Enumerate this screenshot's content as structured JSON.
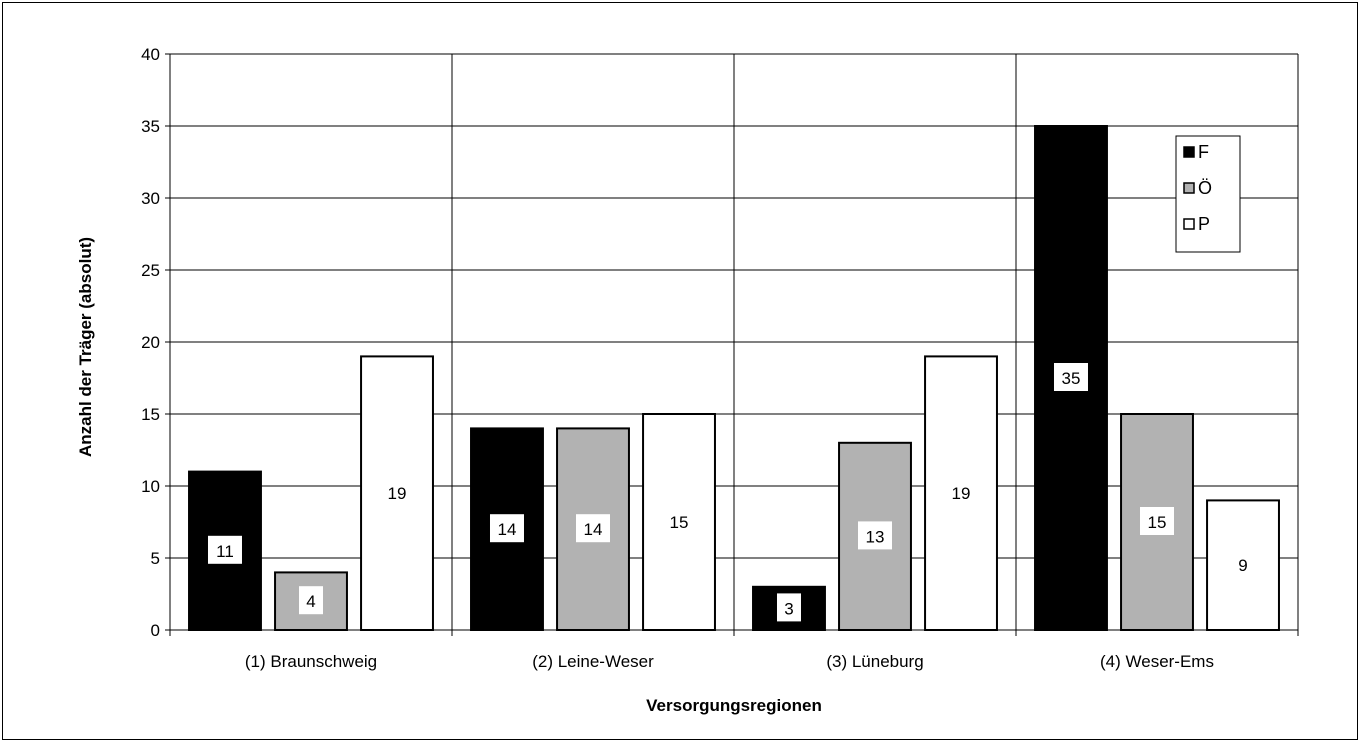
{
  "chart_data": {
    "type": "bar",
    "title": "",
    "xlabel": "Versorgungsregionen",
    "ylabel": "Anzahl der Träger (absolut)",
    "ylim": [
      0,
      40
    ],
    "yticks": [
      0,
      5,
      10,
      15,
      20,
      25,
      30,
      35,
      40
    ],
    "grid": true,
    "legend_position": "top-right",
    "categories": [
      "(1) Braunschweig",
      "(2) Leine-Weser",
      "(3) Lüneburg",
      "(4) Weser-Ems"
    ],
    "series": [
      {
        "name": "F",
        "values": [
          11,
          14,
          3,
          35
        ],
        "color": "#000000"
      },
      {
        "name": "Ö",
        "values": [
          4,
          14,
          13,
          15
        ],
        "color": "#b2b2b2"
      },
      {
        "name": "P",
        "values": [
          19,
          15,
          19,
          9
        ],
        "color": "#ffffff"
      }
    ]
  }
}
